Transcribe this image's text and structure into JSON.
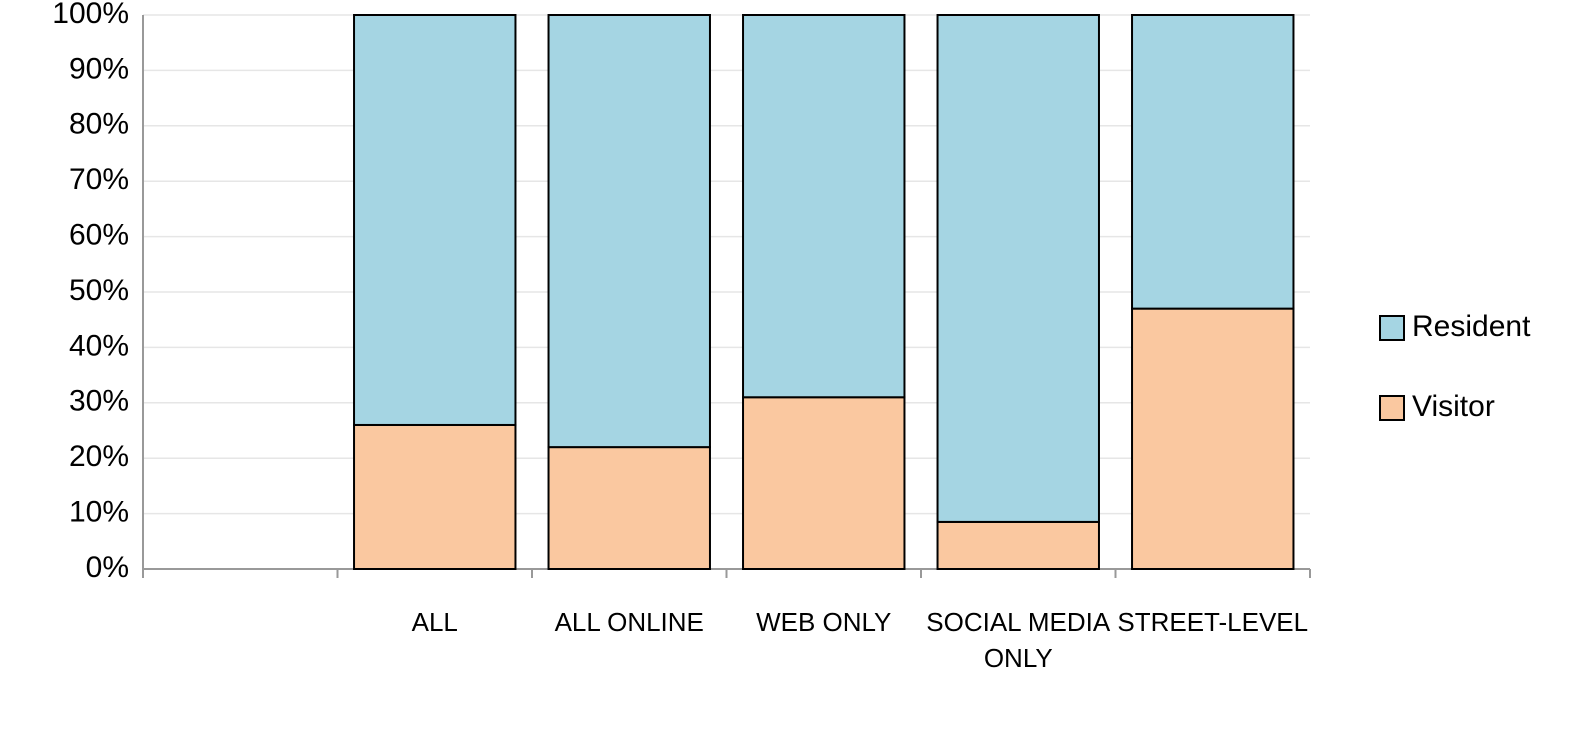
{
  "chart_data": {
    "type": "bar",
    "stacked": true,
    "categories": [
      null,
      "ALL",
      "ALL ONLINE",
      "WEB ONLY",
      "SOCIAL MEDIA ONLY",
      "STREET-LEVEL"
    ],
    "series": [
      {
        "name": "Visitor",
        "color": "#fac8a0",
        "values": [
          null,
          26,
          22,
          31,
          8.5,
          47
        ]
      },
      {
        "name": "Resident",
        "color": "#a5d5e3",
        "values": [
          null,
          74,
          78,
          69,
          91.5,
          53
        ]
      }
    ],
    "ylim": [
      0,
      100
    ],
    "yticks": [
      {
        "value": 0,
        "label": "0%"
      },
      {
        "value": 10,
        "label": "10%"
      },
      {
        "value": 20,
        "label": "20%"
      },
      {
        "value": 30,
        "label": "30%"
      },
      {
        "value": 40,
        "label": "40%"
      },
      {
        "value": 50,
        "label": "50%"
      },
      {
        "value": 60,
        "label": "60%"
      },
      {
        "value": 70,
        "label": "70%"
      },
      {
        "value": 80,
        "label": "80%"
      },
      {
        "value": 90,
        "label": "90%"
      },
      {
        "value": 100,
        "label": "100%"
      }
    ],
    "grid": true,
    "legend": "right"
  }
}
